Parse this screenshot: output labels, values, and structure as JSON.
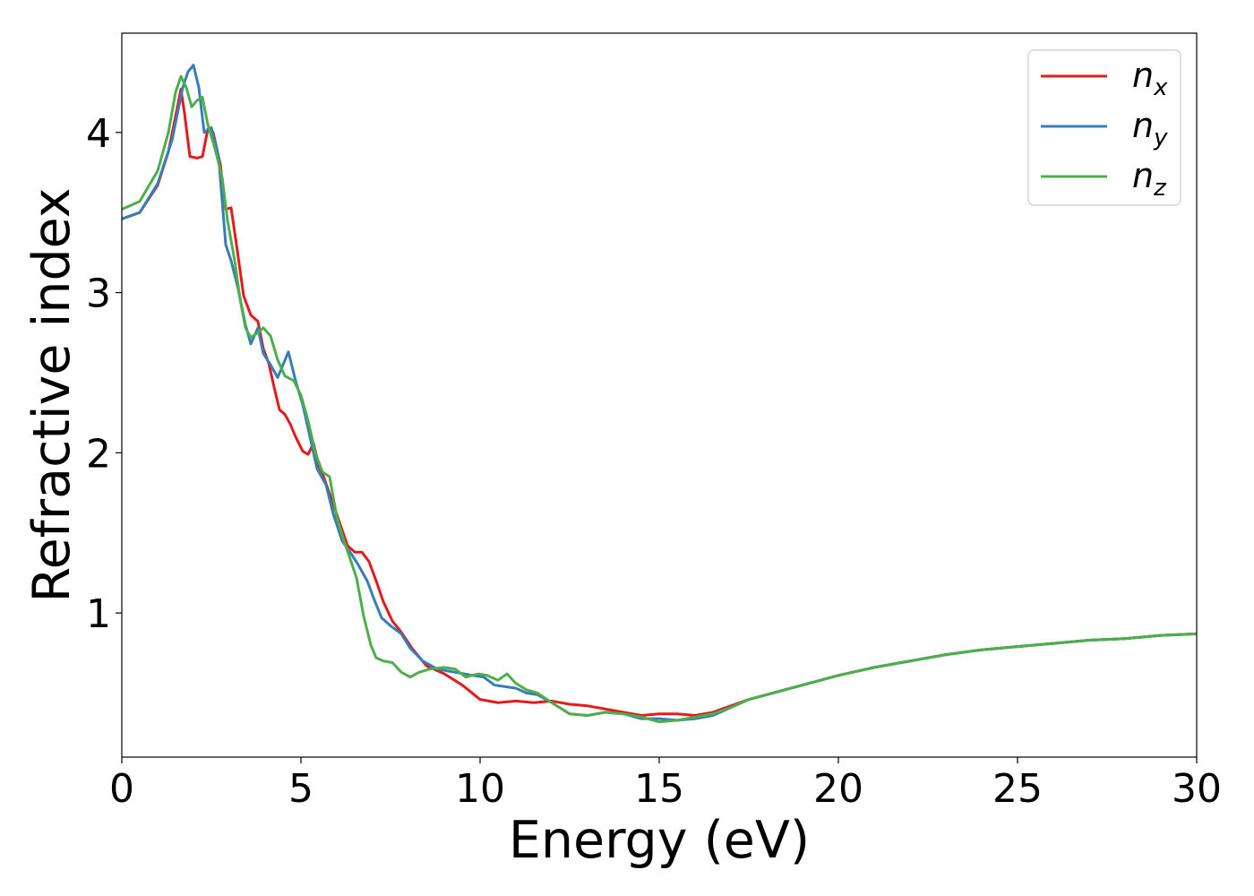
{
  "chart_data": {
    "type": "line",
    "title": "",
    "xlabel": "Energy (eV)",
    "ylabel": "Refractive index",
    "xlim": [
      0,
      30
    ],
    "ylim": [
      0.1,
      4.62
    ],
    "xticks": [
      "0",
      "5",
      "10",
      "15",
      "20",
      "25",
      "30"
    ],
    "yticks": [
      "1",
      "2",
      "3",
      "4"
    ],
    "grid": false,
    "legend_position": "top-right",
    "series": [
      {
        "name": "n",
        "subscript": "x",
        "color": "#e41a1c",
        "points": [
          [
            0,
            3.46
          ],
          [
            0.5,
            3.5
          ],
          [
            1.0,
            3.67
          ],
          [
            1.3,
            3.88
          ],
          [
            1.5,
            4.1
          ],
          [
            1.65,
            4.27
          ],
          [
            1.75,
            4.12
          ],
          [
            1.9,
            3.85
          ],
          [
            2.1,
            3.84
          ],
          [
            2.25,
            3.85
          ],
          [
            2.4,
            4.02
          ],
          [
            2.55,
            4.0
          ],
          [
            2.75,
            3.8
          ],
          [
            2.9,
            3.52
          ],
          [
            3.05,
            3.53
          ],
          [
            3.2,
            3.3
          ],
          [
            3.4,
            2.98
          ],
          [
            3.6,
            2.86
          ],
          [
            3.8,
            2.82
          ],
          [
            3.95,
            2.65
          ],
          [
            4.1,
            2.56
          ],
          [
            4.25,
            2.41
          ],
          [
            4.4,
            2.27
          ],
          [
            4.55,
            2.24
          ],
          [
            4.7,
            2.18
          ],
          [
            4.85,
            2.1
          ],
          [
            5.05,
            2.01
          ],
          [
            5.2,
            1.99
          ],
          [
            5.35,
            2.06
          ],
          [
            5.5,
            1.92
          ],
          [
            5.65,
            1.84
          ],
          [
            5.9,
            1.68
          ],
          [
            6.1,
            1.55
          ],
          [
            6.3,
            1.42
          ],
          [
            6.5,
            1.38
          ],
          [
            6.7,
            1.38
          ],
          [
            6.9,
            1.32
          ],
          [
            7.1,
            1.2
          ],
          [
            7.3,
            1.07
          ],
          [
            7.55,
            0.95
          ],
          [
            7.8,
            0.88
          ],
          [
            8.1,
            0.78
          ],
          [
            8.5,
            0.67
          ],
          [
            9.0,
            0.62
          ],
          [
            9.5,
            0.55
          ],
          [
            10.0,
            0.46
          ],
          [
            10.5,
            0.44
          ],
          [
            11.0,
            0.45
          ],
          [
            11.5,
            0.44
          ],
          [
            12.0,
            0.45
          ],
          [
            12.5,
            0.43
          ],
          [
            13.0,
            0.42
          ],
          [
            13.5,
            0.4
          ],
          [
            14.0,
            0.38
          ],
          [
            14.5,
            0.36
          ],
          [
            15.0,
            0.37
          ],
          [
            15.5,
            0.37
          ],
          [
            16.0,
            0.36
          ],
          [
            16.5,
            0.38
          ],
          [
            17.0,
            0.42
          ],
          [
            17.5,
            0.46
          ],
          [
            18.0,
            0.49
          ],
          [
            19.0,
            0.55
          ],
          [
            20.0,
            0.61
          ],
          [
            21.0,
            0.66
          ],
          [
            22.0,
            0.7
          ],
          [
            23.0,
            0.74
          ],
          [
            24.0,
            0.77
          ],
          [
            25.0,
            0.79
          ],
          [
            26.0,
            0.81
          ],
          [
            27.0,
            0.83
          ],
          [
            28.0,
            0.84
          ],
          [
            29.0,
            0.86
          ],
          [
            30.0,
            0.87
          ]
        ]
      },
      {
        "name": "n",
        "subscript": "y",
        "color": "#377eb8",
        "points": [
          [
            0,
            3.46
          ],
          [
            0.5,
            3.5
          ],
          [
            1.0,
            3.68
          ],
          [
            1.4,
            3.95
          ],
          [
            1.7,
            4.28
          ],
          [
            1.85,
            4.38
          ],
          [
            2.0,
            4.42
          ],
          [
            2.15,
            4.28
          ],
          [
            2.3,
            4.0
          ],
          [
            2.5,
            4.03
          ],
          [
            2.7,
            3.85
          ],
          [
            2.9,
            3.3
          ],
          [
            3.05,
            3.2
          ],
          [
            3.25,
            3.02
          ],
          [
            3.45,
            2.8
          ],
          [
            3.6,
            2.68
          ],
          [
            3.8,
            2.78
          ],
          [
            3.95,
            2.62
          ],
          [
            4.15,
            2.55
          ],
          [
            4.35,
            2.47
          ],
          [
            4.5,
            2.55
          ],
          [
            4.65,
            2.63
          ],
          [
            4.85,
            2.45
          ],
          [
            5.05,
            2.3
          ],
          [
            5.25,
            2.1
          ],
          [
            5.45,
            1.9
          ],
          [
            5.7,
            1.8
          ],
          [
            5.9,
            1.62
          ],
          [
            6.15,
            1.45
          ],
          [
            6.4,
            1.37
          ],
          [
            6.6,
            1.3
          ],
          [
            6.85,
            1.2
          ],
          [
            7.05,
            1.08
          ],
          [
            7.25,
            0.97
          ],
          [
            7.5,
            0.92
          ],
          [
            7.8,
            0.87
          ],
          [
            8.05,
            0.78
          ],
          [
            8.4,
            0.7
          ],
          [
            8.8,
            0.65
          ],
          [
            9.3,
            0.63
          ],
          [
            9.8,
            0.61
          ],
          [
            10.1,
            0.6
          ],
          [
            10.4,
            0.55
          ],
          [
            10.7,
            0.54
          ],
          [
            11.0,
            0.53
          ],
          [
            11.3,
            0.5
          ],
          [
            11.6,
            0.49
          ],
          [
            12.0,
            0.44
          ],
          [
            12.5,
            0.37
          ],
          [
            13.0,
            0.36
          ],
          [
            13.5,
            0.38
          ],
          [
            14.0,
            0.37
          ],
          [
            14.5,
            0.34
          ],
          [
            15.0,
            0.34
          ],
          [
            15.5,
            0.33
          ],
          [
            16.0,
            0.34
          ],
          [
            16.5,
            0.36
          ],
          [
            17.0,
            0.41
          ],
          [
            17.5,
            0.46
          ],
          [
            18.0,
            0.49
          ],
          [
            18.5,
            0.52
          ],
          [
            19.0,
            0.55
          ],
          [
            20.0,
            0.61
          ],
          [
            21.0,
            0.66
          ],
          [
            22.0,
            0.7
          ],
          [
            23.0,
            0.74
          ],
          [
            24.0,
            0.77
          ],
          [
            25.0,
            0.79
          ],
          [
            26.0,
            0.81
          ],
          [
            27.0,
            0.83
          ],
          [
            28.0,
            0.84
          ],
          [
            29.0,
            0.86
          ],
          [
            30.0,
            0.87
          ]
        ]
      },
      {
        "name": "n",
        "subscript": "z",
        "color": "#4daf4a",
        "points": [
          [
            0,
            3.52
          ],
          [
            0.5,
            3.57
          ],
          [
            1.0,
            3.76
          ],
          [
            1.3,
            4.0
          ],
          [
            1.5,
            4.25
          ],
          [
            1.65,
            4.35
          ],
          [
            1.8,
            4.28
          ],
          [
            1.95,
            4.16
          ],
          [
            2.1,
            4.2
          ],
          [
            2.25,
            4.22
          ],
          [
            2.4,
            4.05
          ],
          [
            2.6,
            3.9
          ],
          [
            2.8,
            3.72
          ],
          [
            2.95,
            3.45
          ],
          [
            3.15,
            3.2
          ],
          [
            3.3,
            2.96
          ],
          [
            3.45,
            2.78
          ],
          [
            3.6,
            2.72
          ],
          [
            3.8,
            2.75
          ],
          [
            3.95,
            2.78
          ],
          [
            4.15,
            2.73
          ],
          [
            4.35,
            2.58
          ],
          [
            4.55,
            2.48
          ],
          [
            4.8,
            2.45
          ],
          [
            5.0,
            2.36
          ],
          [
            5.2,
            2.2
          ],
          [
            5.4,
            2.0
          ],
          [
            5.6,
            1.88
          ],
          [
            5.8,
            1.85
          ],
          [
            6.0,
            1.6
          ],
          [
            6.2,
            1.45
          ],
          [
            6.4,
            1.32
          ],
          [
            6.55,
            1.22
          ],
          [
            6.75,
            0.98
          ],
          [
            6.95,
            0.8
          ],
          [
            7.1,
            0.72
          ],
          [
            7.3,
            0.7
          ],
          [
            7.55,
            0.69
          ],
          [
            7.8,
            0.63
          ],
          [
            8.05,
            0.6
          ],
          [
            8.3,
            0.63
          ],
          [
            8.6,
            0.65
          ],
          [
            9.0,
            0.66
          ],
          [
            9.3,
            0.65
          ],
          [
            9.6,
            0.6
          ],
          [
            9.95,
            0.62
          ],
          [
            10.2,
            0.61
          ],
          [
            10.5,
            0.58
          ],
          [
            10.75,
            0.62
          ],
          [
            11.0,
            0.56
          ],
          [
            11.3,
            0.52
          ],
          [
            11.6,
            0.5
          ],
          [
            12.0,
            0.44
          ],
          [
            12.5,
            0.37
          ],
          [
            13.0,
            0.36
          ],
          [
            13.5,
            0.38
          ],
          [
            14.0,
            0.37
          ],
          [
            14.5,
            0.35
          ],
          [
            15.0,
            0.32
          ],
          [
            15.5,
            0.33
          ],
          [
            16.0,
            0.35
          ],
          [
            16.5,
            0.37
          ],
          [
            17.0,
            0.41
          ],
          [
            17.5,
            0.46
          ],
          [
            18.0,
            0.49
          ],
          [
            18.5,
            0.52
          ],
          [
            19.0,
            0.55
          ],
          [
            20.0,
            0.61
          ],
          [
            21.0,
            0.66
          ],
          [
            22.0,
            0.7
          ],
          [
            23.0,
            0.74
          ],
          [
            24.0,
            0.77
          ],
          [
            25.0,
            0.79
          ],
          [
            26.0,
            0.81
          ],
          [
            27.0,
            0.83
          ],
          [
            28.0,
            0.84
          ],
          [
            29.0,
            0.86
          ],
          [
            30.0,
            0.87
          ]
        ]
      }
    ]
  }
}
